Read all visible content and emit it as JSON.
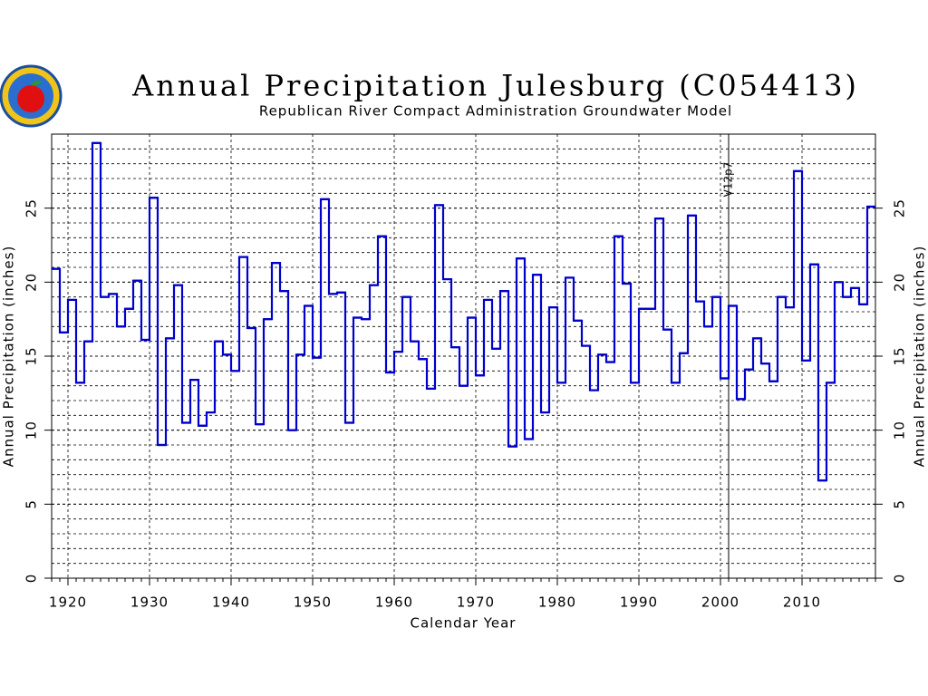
{
  "chart_data": {
    "type": "step",
    "title": "Annual Precipitation Julesburg (C054413)",
    "subtitle": "Republican River Compact Administration Groundwater Model",
    "x_label": "Calendar Year",
    "y_label": "Annual Precipitation (inches)",
    "color": "#0000cc",
    "x": [
      1918,
      1919,
      1920,
      1921,
      1922,
      1923,
      1924,
      1925,
      1926,
      1927,
      1928,
      1929,
      1930,
      1931,
      1932,
      1933,
      1934,
      1935,
      1936,
      1937,
      1938,
      1939,
      1940,
      1941,
      1942,
      1943,
      1944,
      1945,
      1946,
      1947,
      1948,
      1949,
      1950,
      1951,
      1952,
      1953,
      1954,
      1955,
      1956,
      1957,
      1958,
      1959,
      1960,
      1961,
      1962,
      1963,
      1964,
      1965,
      1966,
      1967,
      1968,
      1969,
      1970,
      1971,
      1972,
      1973,
      1974,
      1975,
      1976,
      1977,
      1978,
      1979,
      1980,
      1981,
      1982,
      1983,
      1984,
      1985,
      1986,
      1987,
      1988,
      1989,
      1990,
      1991,
      1992,
      1993,
      1994,
      1995,
      1996,
      1997,
      1998,
      1999,
      2000,
      2001,
      2002,
      2003,
      2004,
      2005,
      2006,
      2007,
      2008,
      2009,
      2010,
      2011,
      2012,
      2013,
      2014,
      2015,
      2016,
      2017,
      2018
    ],
    "values": [
      20.9,
      16.6,
      18.8,
      13.2,
      16.0,
      29.4,
      19.0,
      19.2,
      17.0,
      18.2,
      20.1,
      16.1,
      25.7,
      9.0,
      16.2,
      19.8,
      10.5,
      13.4,
      10.3,
      11.2,
      16.0,
      15.1,
      14.0,
      21.7,
      16.9,
      10.4,
      17.5,
      21.3,
      19.4,
      10.0,
      15.1,
      18.4,
      14.9,
      25.6,
      19.2,
      19.3,
      10.5,
      17.6,
      17.5,
      19.8,
      23.1,
      13.9,
      15.3,
      19.0,
      16.0,
      14.8,
      12.8,
      25.2,
      20.2,
      15.6,
      13.0,
      17.6,
      13.7,
      18.8,
      15.5,
      19.4,
      8.9,
      21.6,
      9.4,
      20.5,
      11.2,
      18.3,
      13.2,
      20.3,
      17.4,
      15.7,
      12.7,
      15.1,
      14.6,
      23.1,
      19.9,
      13.2,
      18.2,
      18.2,
      24.3,
      16.8,
      13.2,
      15.2,
      24.5,
      18.7,
      17.0,
      19.0,
      13.5,
      18.4,
      12.1,
      14.1,
      16.2,
      14.5,
      13.3,
      19.0,
      18.3,
      27.5,
      14.7,
      21.2,
      6.6,
      13.2,
      20.0,
      19.0,
      19.6,
      18.5,
      25.1
    ],
    "xlim": [
      1918,
      2019
    ],
    "xticks": [
      1920,
      1930,
      1940,
      1950,
      1960,
      1970,
      1980,
      1990,
      2000,
      2010
    ],
    "ylim": [
      0,
      30
    ],
    "yticks": [
      0,
      5,
      10,
      15,
      20,
      25
    ],
    "minor_grid_step": 1,
    "grid": true,
    "annotation": {
      "x": 2001,
      "label": "V12p7"
    }
  }
}
